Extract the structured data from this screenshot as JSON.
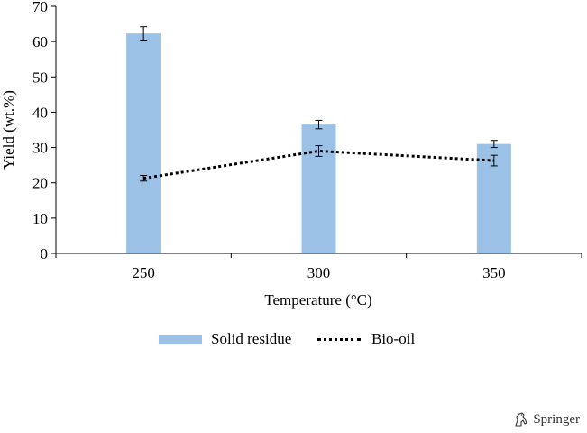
{
  "chart_data": {
    "type": "bar",
    "xlabel": "Temperature (°C)",
    "ylabel": "Yield (wt.%)",
    "categories": [
      "250",
      "300",
      "350"
    ],
    "ylim": [
      0,
      70
    ],
    "yticks": [
      0,
      10,
      20,
      30,
      40,
      50,
      60,
      70
    ],
    "grid": false,
    "legend_position": "bottom",
    "series": [
      {
        "name": "Solid residue",
        "type": "bar",
        "color": "#9bc2e6",
        "values": [
          62.3,
          36.5,
          31.0
        ],
        "errors": [
          1.9,
          1.2,
          1.0
        ]
      },
      {
        "name": "Bio-oil",
        "type": "line",
        "style": "dotted",
        "color": "#000000",
        "values": [
          21.3,
          29.0,
          26.3
        ],
        "errors": [
          0.8,
          1.5,
          1.5
        ]
      }
    ]
  },
  "publisher": {
    "name": "Springer",
    "icon": "springer-horse-icon"
  }
}
